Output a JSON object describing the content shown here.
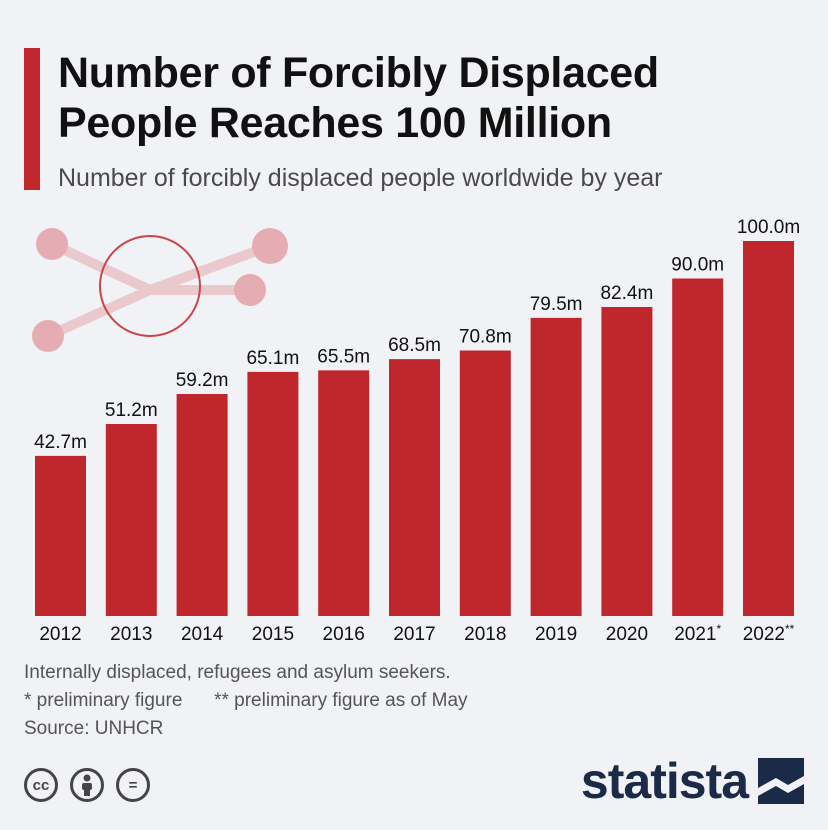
{
  "header": {
    "title_line1": "Number of Forcibly Displaced",
    "title_line2": "People Reaches 100 Million",
    "subtitle": "Number of forcibly displaced people worldwide by year"
  },
  "chart_data": {
    "type": "bar",
    "categories": [
      "2012",
      "2013",
      "2014",
      "2015",
      "2016",
      "2017",
      "2018",
      "2019",
      "2020",
      "2021*",
      "2022**"
    ],
    "values": [
      42.7,
      51.2,
      59.2,
      65.1,
      65.5,
      68.5,
      70.8,
      79.5,
      82.4,
      90.0,
      100.0
    ],
    "data_labels": [
      "42.7m",
      "51.2m",
      "59.2m",
      "65.1m",
      "65.5m",
      "68.5m",
      "70.8m",
      "79.5m",
      "82.4m",
      "90.0m",
      "100.0m"
    ],
    "unit": "m",
    "ylim": [
      0,
      100
    ],
    "grid": false,
    "bar_color": "#c0272d"
  },
  "footnotes": {
    "line1": "Internally displaced, refugees and asylum seekers.",
    "prelim": "* preliminary figure",
    "prelim_may": "** preliminary figure as of May",
    "source": "Source: UNHCR"
  },
  "license_icons": [
    "cc-icon",
    "by-icon",
    "nd-icon"
  ],
  "license_glyphs": {
    "cc": "cc",
    "nd": "="
  },
  "brand": {
    "name": "statista",
    "color": "#1a2a47"
  },
  "colors": {
    "accent": "#c2272d",
    "background": "#f1f2f6",
    "decoration": "#e3a1a6"
  }
}
